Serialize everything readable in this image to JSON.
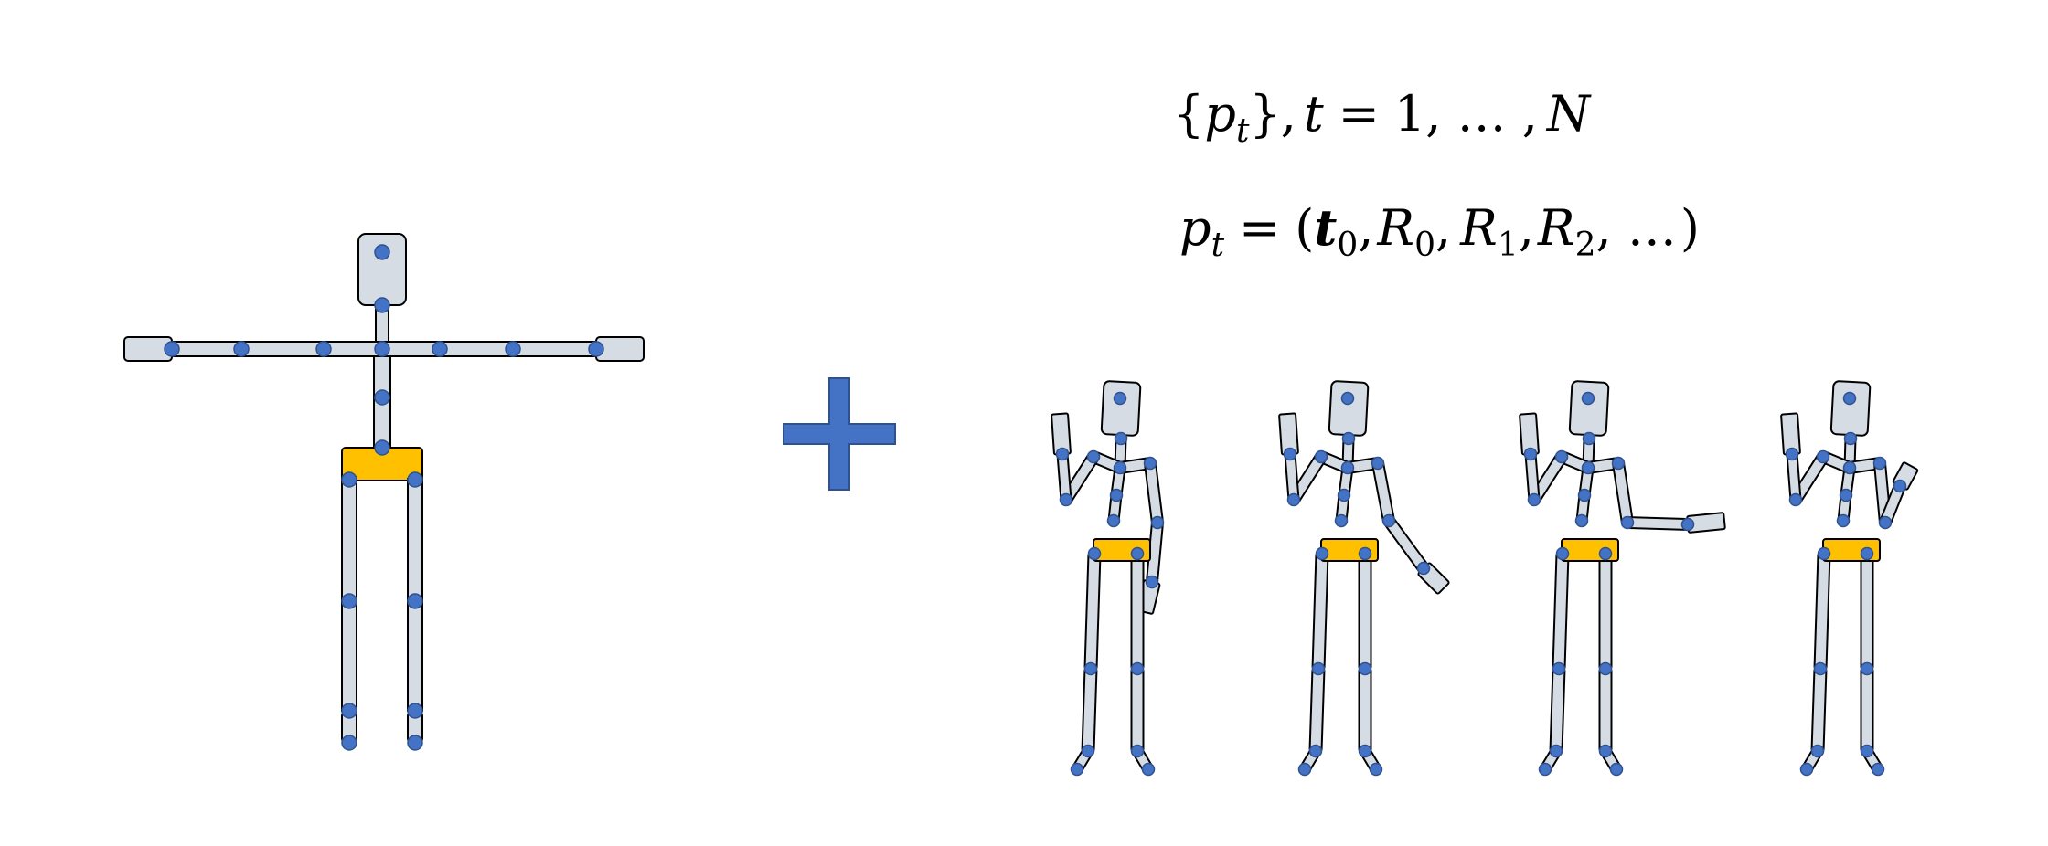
{
  "equations": {
    "sequence": {
      "open_brace": "{",
      "p": "p",
      "sub_t": "t",
      "close_brace": "}",
      "comma": ",",
      "t": "t",
      "equals": "=",
      "range": "1, … ,",
      "N": "N"
    },
    "pose": {
      "p": "p",
      "sub_t": "t",
      "equals": "=",
      "open_paren": "(",
      "t_bold": "t",
      "sub_0a": "0",
      "comma1": ",",
      "R0": "R",
      "sub_0b": "0",
      "comma2": ",",
      "R1": "R",
      "sub_1": "1",
      "comma3": ",",
      "R2": "R",
      "sub_2": "2",
      "tail": ", …",
      "close_paren": ")"
    }
  },
  "colors": {
    "bone_fill": "#d6dce4",
    "pelvis_fill": "#ffc000",
    "joint_fill": "#4472c4",
    "plus_fill": "#4472c4",
    "outline": "#000000"
  },
  "figures": {
    "rest_pose_count": 1,
    "animated_pose_count": 4
  }
}
